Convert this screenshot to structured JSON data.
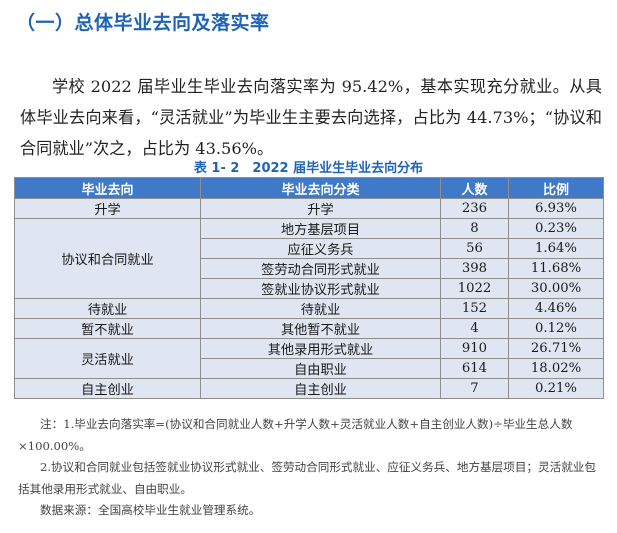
{
  "section_heading": "（一）总体毕业去向及落实率",
  "paragraph": "学校 2022 届毕业生毕业去向落实率为 95.42%，基本实现充分就业。从具体毕业去向来看，“灵活就业”为毕业生主要去向选择，占比为 44.73%；“协议和合同就业”次之，占比为 43.56%。",
  "table_caption": "表 1- 2　2022 届毕业生毕业去向分布",
  "table": {
    "headers": [
      "毕业去向",
      "毕业去向分类",
      "人数",
      "比例"
    ],
    "rows": [
      {
        "group": "升学",
        "category": "升学",
        "count": "236",
        "ratio": "6.93%"
      },
      {
        "group": "协议和合同就业",
        "category": "地方基层项目",
        "count": "8",
        "ratio": "0.23%"
      },
      {
        "group": "",
        "category": "应征义务兵",
        "count": "56",
        "ratio": "1.64%"
      },
      {
        "group": "",
        "category": "签劳动合同形式就业",
        "count": "398",
        "ratio": "11.68%"
      },
      {
        "group": "",
        "category": "签就业协议形式就业",
        "count": "1022",
        "ratio": "30.00%"
      },
      {
        "group": "待就业",
        "category": "待就业",
        "count": "152",
        "ratio": "4.46%"
      },
      {
        "group": "暂不就业",
        "category": "其他暂不就业",
        "count": "4",
        "ratio": "0.12%"
      },
      {
        "group": "灵活就业",
        "category": "其他录用形式就业",
        "count": "910",
        "ratio": "26.71%"
      },
      {
        "group": "",
        "category": "自由职业",
        "count": "614",
        "ratio": "18.02%"
      },
      {
        "group": "自主创业",
        "category": "自主创业",
        "count": "7",
        "ratio": "0.21%"
      }
    ]
  },
  "notes": {
    "note1": "注：1.毕业去向落实率=(协议和合同就业人数+升学人数+灵活就业人数+自主创业人数)÷毕业生总人数×100.00%。",
    "note2": "2.协议和合同就业包括签就业协议形式就业、签劳动合同形式就业、应征义务兵、地方基层项目；灵活就业包括其他录用形式就业、自由职业。",
    "source": "数据来源：全国高校毕业生就业管理系统。"
  }
}
